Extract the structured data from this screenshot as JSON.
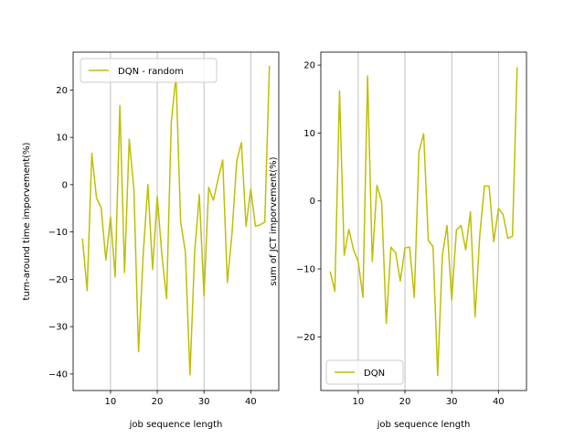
{
  "chart_data": [
    {
      "type": "line",
      "xlabel": "job sequence length",
      "ylabel": "turn-around time imporvement(%)",
      "xlim": [
        2.0,
        46.0
      ],
      "ylim": [
        -43.5,
        28.0
      ],
      "xticks": [
        10,
        20,
        30,
        40
      ],
      "yticks": [
        -40,
        -30,
        -20,
        -10,
        0,
        10,
        20
      ],
      "grid": "x",
      "legend": "upper-left",
      "series": [
        {
          "name": "DQN - random",
          "color": "#bfbf00",
          "x": [
            4,
            5,
            6,
            7,
            8,
            9,
            10,
            11,
            12,
            13,
            14,
            15,
            16,
            17,
            18,
            19,
            20,
            21,
            22,
            23,
            24,
            25,
            26,
            27,
            28,
            29,
            30,
            31,
            32,
            33,
            34,
            35,
            36,
            37,
            38,
            39,
            40,
            41,
            42,
            43,
            44
          ],
          "y": [
            -11.4,
            -22.4,
            6.6,
            -2.8,
            -4.9,
            -15.9,
            -6.8,
            -19.5,
            16.7,
            -18.6,
            9.6,
            -1.0,
            -35.3,
            -14.6,
            0.0,
            -17.9,
            -2.5,
            -15.0,
            -24.1,
            13.2,
            23.0,
            -7.8,
            -14.1,
            -40.2,
            -14.3,
            -2.1,
            -23.5,
            -0.6,
            -3.3,
            1.1,
            5.2,
            -20.7,
            -10.2,
            5.0,
            8.9,
            -8.8,
            -0.9,
            -8.8,
            -8.5,
            -7.9,
            25.1
          ]
        }
      ]
    },
    {
      "type": "line",
      "xlabel": "job sequence length",
      "ylabel": "sum of JCT imporvement(%)",
      "xlim": [
        2.0,
        46.0
      ],
      "ylim": [
        -27.9,
        21.9
      ],
      "xticks": [
        10,
        20,
        30,
        40
      ],
      "yticks": [
        -20,
        -10,
        0,
        10,
        20
      ],
      "grid": "x",
      "legend": "lower-left",
      "series": [
        {
          "name": "DQN",
          "color": "#bfbf00",
          "x": [
            4,
            5,
            6,
            7,
            8,
            9,
            10,
            11,
            12,
            13,
            14,
            15,
            16,
            17,
            18,
            19,
            20,
            21,
            22,
            23,
            24,
            25,
            26,
            27,
            28,
            29,
            30,
            31,
            32,
            33,
            34,
            35,
            36,
            37,
            38,
            39,
            40,
            41,
            42,
            43,
            44
          ],
          "y": [
            -10.4,
            -13.3,
            16.2,
            -8.0,
            -4.2,
            -7.2,
            -8.9,
            -14.2,
            18.4,
            -8.9,
            2.3,
            -0.1,
            -18.0,
            -6.8,
            -7.6,
            -11.8,
            -6.9,
            -6.8,
            -14.2,
            7.3,
            9.9,
            -5.8,
            -6.7,
            -25.7,
            -8.0,
            -3.6,
            -14.6,
            -4.3,
            -3.6,
            -7.2,
            -1.6,
            -17.1,
            -5.1,
            2.2,
            2.2,
            -6.0,
            -1.1,
            -2.0,
            -5.5,
            -5.2,
            19.7
          ]
        }
      ]
    }
  ]
}
